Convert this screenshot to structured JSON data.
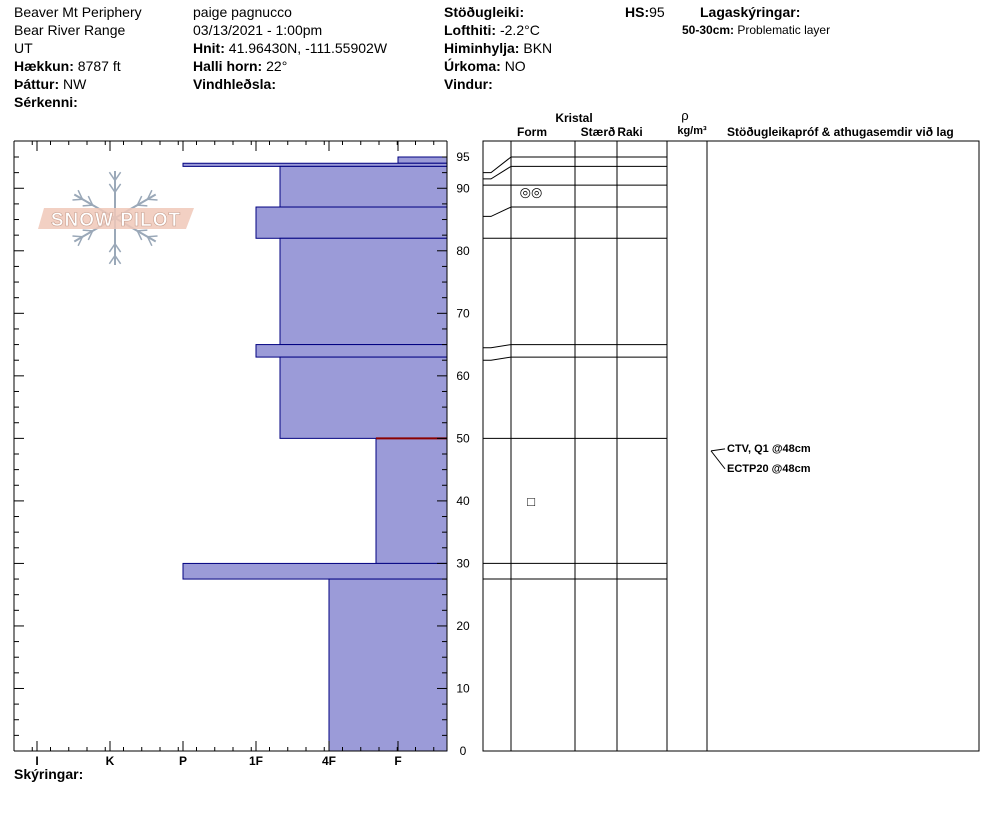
{
  "header": {
    "location": "Beaver Mt Periphery",
    "range": "Bear River Range",
    "state": "UT",
    "elevation_label": "Hækkun:",
    "elevation_value": "8787 ft",
    "aspect_label": "Þáttur:",
    "aspect_value": "NW",
    "features_label": "Sérkenni:",
    "observer": "paige pagnucco",
    "datetime": "03/13/2021 - 1:00pm",
    "coords_label": "Hnit:",
    "coords_value": "41.96430N, -111.55902W",
    "slope_label": "Halli horn:",
    "slope_value": "22°",
    "wind_loading_label": "Vindhleðsla:",
    "stability_label": "Stöðugleiki:",
    "air_temp_label": "Lofthiti:",
    "air_temp_value": "-2.2°C",
    "sky_label": "Himinhylja:",
    "sky_value": "BKN",
    "precip_label": "Úrkoma:",
    "precip_value": "NO",
    "wind_label": "Vindur:",
    "hs_label": "HS:",
    "hs_value": "95",
    "layers_label": "Lagaskýringar:",
    "problem_layer_label": "50-30cm:",
    "problem_layer_text": "Problematic layer"
  },
  "logo": {
    "text": "SNOW PILOT"
  },
  "columns": {
    "crystal": "Kristal",
    "form": "Form",
    "size": "Stærð",
    "moisture": "Raki",
    "rho": "ρ",
    "density_unit": "kg/m³",
    "tests": "Stöðugleikapróf & athugasemdir við lag"
  },
  "legend_label": "Skýringar:",
  "colors": {
    "layer_fill": "#9b9bd8",
    "layer_stroke": "#000080",
    "problem_line": "#8b0000"
  },
  "chart_data": {
    "type": "bar",
    "orientation": "horizontal",
    "ylabel": "",
    "xlabel": "",
    "ylim": [
      0,
      95
    ],
    "yticks": [
      0,
      10,
      20,
      30,
      40,
      50,
      60,
      70,
      80,
      90,
      95
    ],
    "hardness_scale": [
      "I",
      "K",
      "P",
      "1F",
      "4F",
      "F"
    ],
    "layers": [
      {
        "top": 95,
        "bottom": 94,
        "hardness": "F"
      },
      {
        "top": 94,
        "bottom": 93.5,
        "hardness": "P"
      },
      {
        "top": 93.5,
        "bottom": 87,
        "hardness": "1F-"
      },
      {
        "top": 87,
        "bottom": 82,
        "hardness": "1F"
      },
      {
        "top": 82,
        "bottom": 65,
        "hardness": "1F-"
      },
      {
        "top": 65,
        "bottom": 63,
        "hardness": "1F"
      },
      {
        "top": 63,
        "bottom": 50,
        "hardness": "1F-"
      },
      {
        "top": 50,
        "bottom": 30,
        "hardness": "4F-F"
      },
      {
        "top": 30,
        "bottom": 27.5,
        "hardness": "P"
      },
      {
        "top": 27.5,
        "bottom": 0,
        "hardness": "4F"
      }
    ],
    "layer_boundaries": [
      95,
      93.5,
      90.5,
      87,
      82,
      65,
      63,
      50,
      30,
      27.5
    ],
    "grain_symbols": [
      {
        "depth": 89.5,
        "symbol": "◎◎"
      },
      {
        "depth": 40,
        "symbol": "□"
      }
    ],
    "tests": [
      {
        "depth": 48,
        "text": "CTV, Q1 @48cm"
      },
      {
        "depth": 48,
        "text": "ECTP20 @48cm"
      }
    ]
  }
}
